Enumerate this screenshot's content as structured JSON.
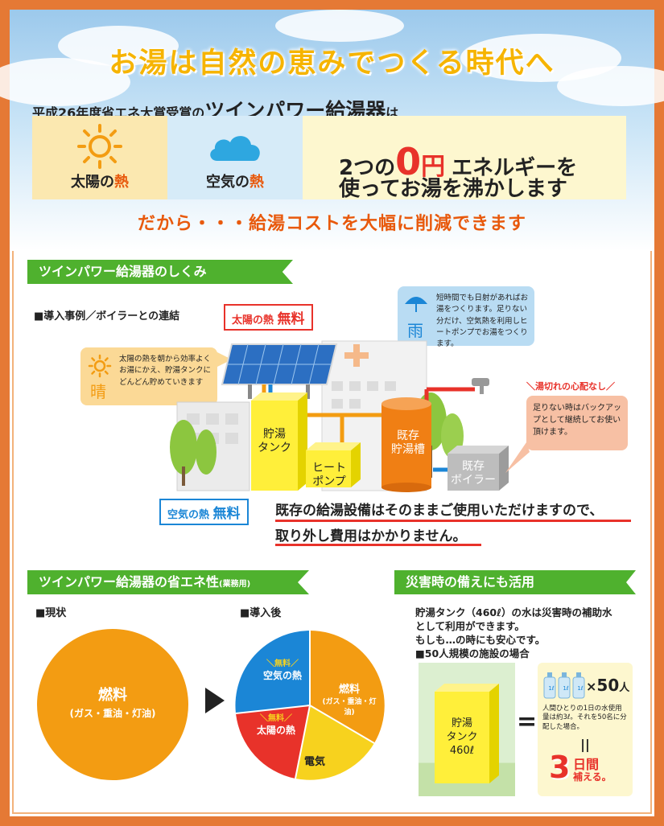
{
  "headline": "お湯は自然の恵みでつくる時代へ",
  "subhead": {
    "prefix": "平成26年度省エネ大賞受賞の",
    "product": "ツインパワー給湯器",
    "suffix": "は"
  },
  "panels": {
    "sun": {
      "label_a": "太陽の",
      "label_b": "熱",
      "icon": "sun-icon",
      "color": "#f39c12"
    },
    "air": {
      "label_a": "空気の",
      "label_b": "熱",
      "icon": "cloud-icon",
      "color": "#2ea7e0"
    },
    "text": {
      "line1_a": "2つの",
      "zero": "0",
      "yen": "円",
      "line1_b": "エネルギーを",
      "line2": "使ってお湯を沸かします"
    }
  },
  "dakara": "だから・・・給湯コストを大幅に削減できます",
  "mechanism": {
    "ribbon": "ツインパワー給湯器のしくみ",
    "case_label": "■導入事例／ボイラーとの連結",
    "solar_tag": {
      "a": "太陽の熱",
      "b": "無料"
    },
    "air_tag": {
      "a": "空気の熱",
      "b": "無料"
    },
    "sunny": {
      "char": "晴",
      "text": "太陽の熱を朝から効率よくお湯にかえ、貯湯タンクにどんどん貯めていきます"
    },
    "rain": {
      "char": "雨",
      "text": "短時間でも日射があればお湯をつくります。足りない分だけ、空気熱を利用しヒートポンプでお湯をつくります。"
    },
    "shortage": {
      "title": "湯切れの心配なし",
      "text": "足りない時はバックアップとして継続してお使い頂けます。"
    },
    "storage_tank": "貯湯\nタンク",
    "heat_pump": "ヒート\nポンプ",
    "existing_tank": "既存\n貯湯槽",
    "existing_boiler": "既存\nボイラー",
    "note_line1": "既存の給湯設備はそのままご使用いただけますので、",
    "note_line2": "取り外し費用はかかりません。"
  },
  "efficiency": {
    "ribbon": "ツインパワー給湯器の省エネ性",
    "ribbon_small": "(業務用)",
    "current_label": "■現状",
    "after_label": "■導入後",
    "current_pie": {
      "label": "燃料",
      "sub": "(ガス・重油・灯油)"
    },
    "after_pie": {
      "fuel": {
        "label": "燃料",
        "sub": "(ガス・重油・灯油)",
        "color": "#f39c12"
      },
      "air": {
        "free": "無料",
        "label": "空気の熱",
        "color": "#1b86d6"
      },
      "solar": {
        "free": "無料",
        "label": "太陽の熱",
        "color": "#e8322a"
      },
      "elec": {
        "label": "電気",
        "color": "#f7d21e"
      }
    }
  },
  "disaster": {
    "ribbon": "災害時の備えにも活用",
    "text1": "貯湯タンク（460ℓ）の水は災害時の補助水",
    "text2": "として利用ができます。",
    "text3": "もしも…の時にも安心です。",
    "scale_label": "■50人規模の施設の場合",
    "tank": "貯湯\nタンク\n460ℓ",
    "bottle_label": "1ℓ",
    "times": "×",
    "people_num": "50",
    "people_unit": "人",
    "per_person": "人間ひとりの1日の水使用量は約3ℓ。それを50名に分配した場合。",
    "equal": "=",
    "days_num": "3",
    "days_unit": "日間",
    "days_text": "補える。"
  }
}
